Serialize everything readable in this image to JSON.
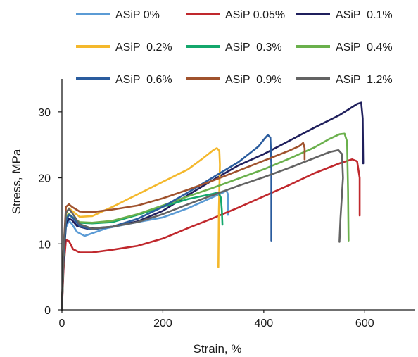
{
  "chart_data": {
    "type": "line",
    "title": "",
    "xlabel": "Strain, %",
    "ylabel": "Stress, MPa",
    "xlim": [
      0,
      700
    ],
    "ylim": [
      0,
      35
    ],
    "x_ticks": [
      0,
      200,
      400,
      600
    ],
    "y_ticks": [
      0,
      10,
      20,
      30
    ],
    "x_tick_labels": [
      "0",
      "200",
      "400",
      "600"
    ],
    "y_tick_labels": [
      "0",
      "10",
      "20",
      "30"
    ],
    "grid": false,
    "legend_position": "top",
    "series": [
      {
        "name": "ASiP 0%",
        "color": "#5b9bd5",
        "points": [
          [
            0,
            0
          ],
          [
            3,
            8
          ],
          [
            8,
            12.5
          ],
          [
            14,
            13.5
          ],
          [
            20,
            13
          ],
          [
            30,
            11.8
          ],
          [
            45,
            11.2
          ],
          [
            60,
            11.6
          ],
          [
            90,
            12.4
          ],
          [
            150,
            13.3
          ],
          [
            200,
            14
          ],
          [
            250,
            15.4
          ],
          [
            300,
            17.1
          ],
          [
            320,
            17.8
          ],
          [
            326,
            18.1
          ],
          [
            329,
            17.5
          ],
          [
            329,
            14.4
          ]
        ]
      },
      {
        "name": "ASiP 0.05%",
        "color": "#c0282d",
        "points": [
          [
            0,
            0
          ],
          [
            3,
            6
          ],
          [
            8,
            10.6
          ],
          [
            14,
            10.4
          ],
          [
            22,
            9.2
          ],
          [
            35,
            8.7
          ],
          [
            60,
            8.7
          ],
          [
            100,
            9.1
          ],
          [
            150,
            9.7
          ],
          [
            200,
            10.8
          ],
          [
            250,
            12.4
          ],
          [
            300,
            13.9
          ],
          [
            350,
            15.5
          ],
          [
            400,
            17.2
          ],
          [
            450,
            18.9
          ],
          [
            500,
            20.7
          ],
          [
            550,
            22.2
          ],
          [
            575,
            22.8
          ],
          [
            585,
            22.5
          ],
          [
            590,
            20
          ],
          [
            590,
            14.3
          ]
        ]
      },
      {
        "name": "ASiP  0.1%",
        "color": "#1f1f5c",
        "points": [
          [
            0,
            0
          ],
          [
            3,
            7
          ],
          [
            8,
            13
          ],
          [
            14,
            13.8
          ],
          [
            20,
            13.6
          ],
          [
            30,
            12.7
          ],
          [
            50,
            12.3
          ],
          [
            100,
            12.6
          ],
          [
            150,
            13.4
          ],
          [
            200,
            15
          ],
          [
            250,
            17.4
          ],
          [
            300,
            19.7
          ],
          [
            350,
            21.9
          ],
          [
            400,
            23.6
          ],
          [
            450,
            25.6
          ],
          [
            500,
            27.6
          ],
          [
            550,
            29.5
          ],
          [
            585,
            31.2
          ],
          [
            593,
            31.4
          ],
          [
            596,
            29
          ],
          [
            597,
            22.2
          ]
        ]
      },
      {
        "name": "ASiP  0.2%",
        "color": "#f4b82c",
        "points": [
          [
            0,
            0
          ],
          [
            3,
            8
          ],
          [
            8,
            14.5
          ],
          [
            14,
            15.4
          ],
          [
            20,
            15
          ],
          [
            35,
            14.1
          ],
          [
            60,
            14.2
          ],
          [
            100,
            15.6
          ],
          [
            150,
            17.5
          ],
          [
            200,
            19.4
          ],
          [
            250,
            21.3
          ],
          [
            280,
            23
          ],
          [
            300,
            24.2
          ],
          [
            307,
            24.5
          ],
          [
            312,
            24.1
          ],
          [
            313,
            22
          ],
          [
            311,
            15
          ],
          [
            310,
            6.5
          ]
        ]
      },
      {
        "name": "ASiP  0.3%",
        "color": "#14a76c",
        "points": [
          [
            0,
            0
          ],
          [
            3,
            8
          ],
          [
            8,
            13.5
          ],
          [
            14,
            14.4
          ],
          [
            20,
            14.1
          ],
          [
            35,
            13.2
          ],
          [
            60,
            13.1
          ],
          [
            100,
            13.3
          ],
          [
            150,
            14.4
          ],
          [
            200,
            15.6
          ],
          [
            250,
            16.8
          ],
          [
            300,
            17.6
          ],
          [
            310,
            17.8
          ],
          [
            315,
            17
          ],
          [
            317,
            15
          ],
          [
            318,
            12.9
          ]
        ]
      },
      {
        "name": "ASiP  0.4%",
        "color": "#6ab04c",
        "points": [
          [
            0,
            0
          ],
          [
            3,
            8
          ],
          [
            8,
            14
          ],
          [
            14,
            14.6
          ],
          [
            20,
            14
          ],
          [
            35,
            13.3
          ],
          [
            60,
            13.2
          ],
          [
            100,
            13.5
          ],
          [
            150,
            14.5
          ],
          [
            200,
            15.8
          ],
          [
            250,
            17.2
          ],
          [
            300,
            18.5
          ],
          [
            350,
            19.9
          ],
          [
            400,
            21.3
          ],
          [
            450,
            22.9
          ],
          [
            500,
            24.6
          ],
          [
            530,
            25.9
          ],
          [
            550,
            26.6
          ],
          [
            560,
            26.7
          ],
          [
            565,
            25.5
          ],
          [
            567,
            18
          ],
          [
            568,
            10.5
          ]
        ]
      },
      {
        "name": "ASiP  0.6%",
        "color": "#2a5c9e",
        "points": [
          [
            0,
            0
          ],
          [
            3,
            8
          ],
          [
            8,
            13.6
          ],
          [
            14,
            14.4
          ],
          [
            20,
            14.1
          ],
          [
            35,
            12.7
          ],
          [
            60,
            12.2
          ],
          [
            100,
            12.6
          ],
          [
            150,
            13.8
          ],
          [
            200,
            15.6
          ],
          [
            250,
            17.8
          ],
          [
            300,
            20.1
          ],
          [
            350,
            22.4
          ],
          [
            390,
            24.8
          ],
          [
            400,
            25.8
          ],
          [
            408,
            26.5
          ],
          [
            413,
            26.1
          ],
          [
            415,
            22
          ],
          [
            415,
            15
          ],
          [
            415,
            10.5
          ]
        ]
      },
      {
        "name": "ASiP  0.9%",
        "color": "#a0522d",
        "points": [
          [
            0,
            0
          ],
          [
            3,
            9
          ],
          [
            8,
            15.6
          ],
          [
            14,
            16
          ],
          [
            20,
            15.6
          ],
          [
            35,
            14.9
          ],
          [
            60,
            14.8
          ],
          [
            100,
            15.2
          ],
          [
            150,
            15.8
          ],
          [
            200,
            16.9
          ],
          [
            250,
            18.2
          ],
          [
            300,
            19.6
          ],
          [
            350,
            21.1
          ],
          [
            400,
            22.6
          ],
          [
            450,
            24.1
          ],
          [
            470,
            24.8
          ],
          [
            478,
            25.3
          ],
          [
            481,
            24.5
          ],
          [
            481,
            22.8
          ]
        ]
      },
      {
        "name": "ASiP  1.2%",
        "color": "#636363",
        "points": [
          [
            0,
            0
          ],
          [
            3,
            9
          ],
          [
            8,
            14.7
          ],
          [
            14,
            15.3
          ],
          [
            20,
            14.7
          ],
          [
            35,
            13
          ],
          [
            60,
            12.3
          ],
          [
            100,
            12.6
          ],
          [
            150,
            13.3
          ],
          [
            200,
            14.5
          ],
          [
            250,
            16
          ],
          [
            300,
            17.4
          ],
          [
            350,
            18.8
          ],
          [
            400,
            20.1
          ],
          [
            450,
            21.5
          ],
          [
            500,
            23
          ],
          [
            530,
            23.9
          ],
          [
            548,
            24.2
          ],
          [
            555,
            23.6
          ],
          [
            557,
            20
          ],
          [
            552,
            14
          ],
          [
            550,
            10.3
          ]
        ]
      }
    ]
  }
}
